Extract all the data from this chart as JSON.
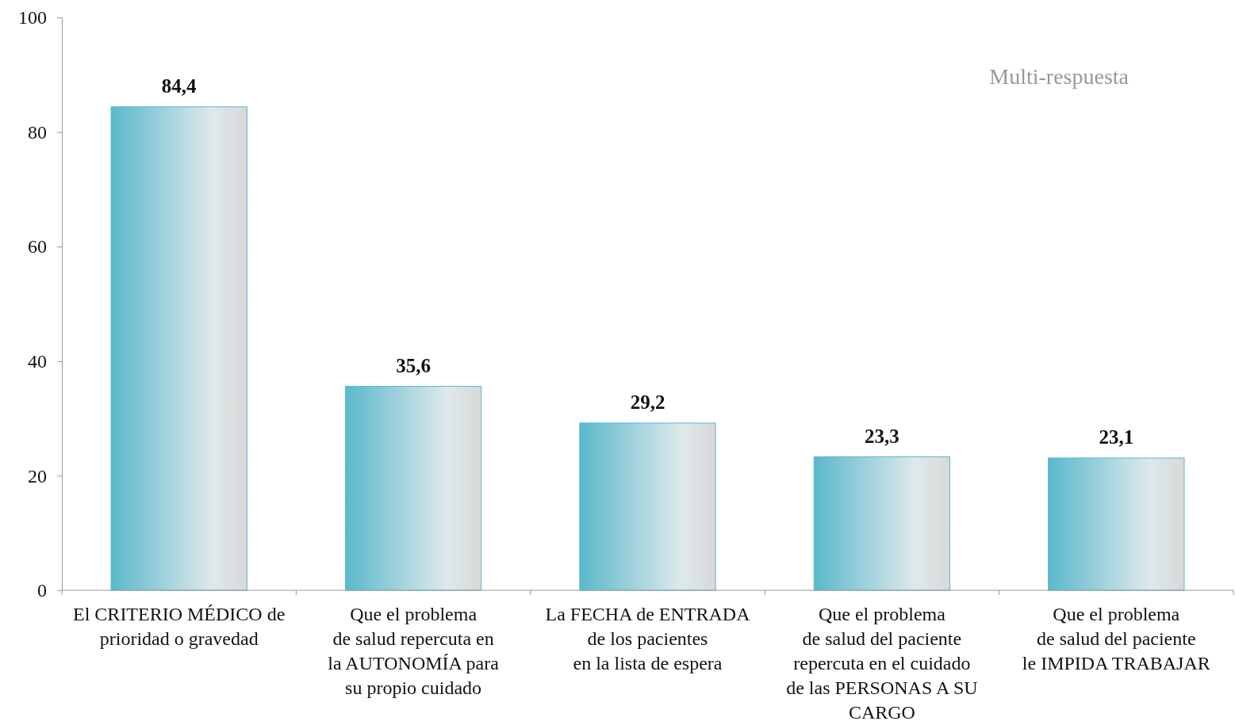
{
  "chart_data": {
    "type": "bar",
    "categories": [
      "El CRITERIO MÉDICO de\nprioridad o gravedad",
      "Que el problema\nde salud repercuta en\nla AUTONOMÍA para\nsu propio cuidado",
      "La FECHA de ENTRADA\nde los pacientes\nen la lista de espera",
      "Que el problema\nde salud del paciente\nrepercuta en el cuidado\nde las PERSONAS A SU\nCARGO",
      "Que el problema\nde salud del paciente\nle IMPIDA TRABAJAR"
    ],
    "values": [
      84.4,
      35.6,
      29.2,
      23.3,
      23.1
    ],
    "value_labels": [
      "84,4",
      "35,6",
      "29,2",
      "23,3",
      "23,1"
    ],
    "color": "#5bb8cc",
    "ylim": [
      0,
      100
    ],
    "yticks": [
      0,
      20,
      40,
      60,
      80,
      100
    ],
    "grid": false,
    "annotations": [
      "Multi-respuesta"
    ]
  }
}
